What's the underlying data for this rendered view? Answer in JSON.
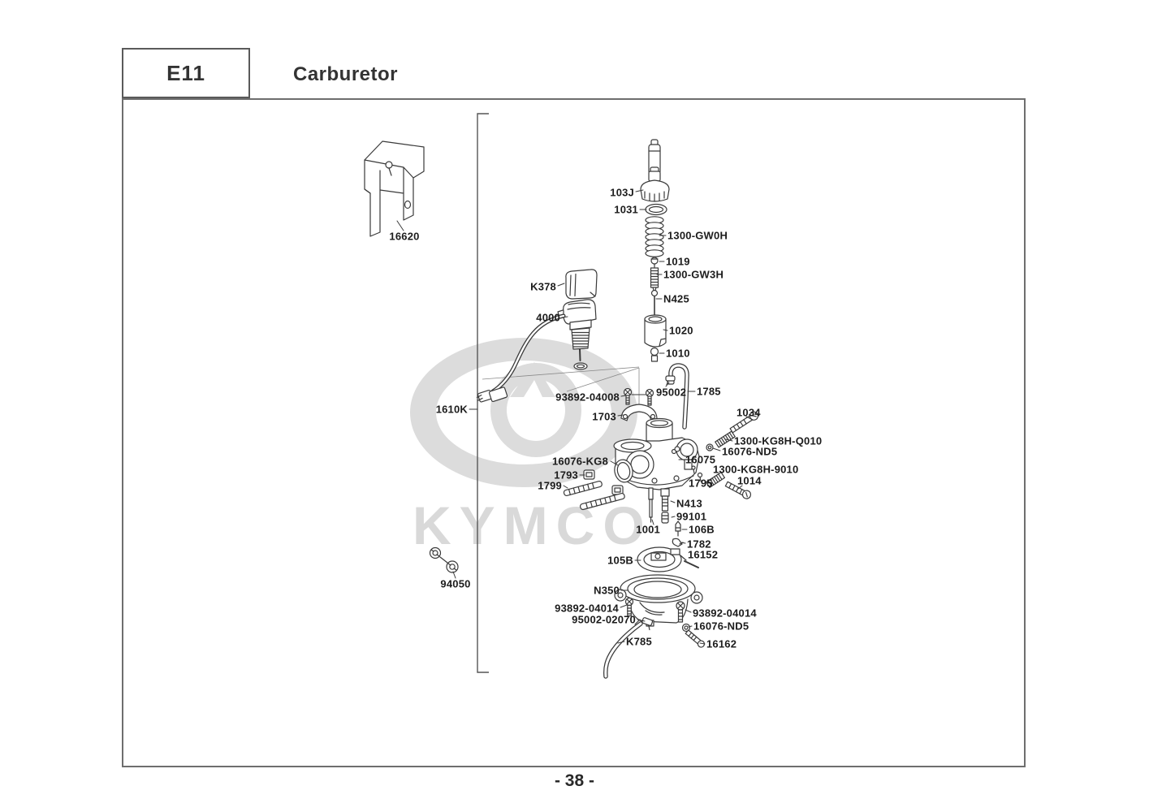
{
  "header": {
    "section_code": "E11",
    "title": "Carburetor"
  },
  "footer": {
    "page_number": "- 38 -"
  },
  "watermark": {
    "brand": "KYMCO"
  },
  "diagram": {
    "labels": [
      {
        "id": "p16620",
        "text": "16620"
      },
      {
        "id": "p103J",
        "text": "103J"
      },
      {
        "id": "p1031",
        "text": "1031"
      },
      {
        "id": "p1300GW0H",
        "text": "1300-GW0H"
      },
      {
        "id": "p1019",
        "text": "1019"
      },
      {
        "id": "p1300GW3H",
        "text": "1300-GW3H"
      },
      {
        "id": "pN425",
        "text": "N425"
      },
      {
        "id": "p1020",
        "text": "1020"
      },
      {
        "id": "p1010",
        "text": "1010"
      },
      {
        "id": "p95002",
        "text": "95002"
      },
      {
        "id": "p1785",
        "text": "1785"
      },
      {
        "id": "p93892_04008",
        "text": "93892-04008"
      },
      {
        "id": "p1703",
        "text": "1703"
      },
      {
        "id": "p1034",
        "text": "1034"
      },
      {
        "id": "pQ010",
        "text": "1300-KG8H-Q010"
      },
      {
        "id": "pND5_top",
        "text": "16076-ND5"
      },
      {
        "id": "p9010",
        "text": "1300-KG8H-9010"
      },
      {
        "id": "p1014",
        "text": "1014"
      },
      {
        "id": "pKG8",
        "text": "16076-KG8"
      },
      {
        "id": "p1793",
        "text": "1793"
      },
      {
        "id": "p1799",
        "text": "1799"
      },
      {
        "id": "p16075",
        "text": "16075"
      },
      {
        "id": "p1795",
        "text": "1795"
      },
      {
        "id": "pN413",
        "text": "N413"
      },
      {
        "id": "p99101",
        "text": "99101"
      },
      {
        "id": "p1001",
        "text": "1001"
      },
      {
        "id": "p106B",
        "text": "106B"
      },
      {
        "id": "p1782",
        "text": "1782"
      },
      {
        "id": "p16152",
        "text": "16152"
      },
      {
        "id": "p105B",
        "text": "105B"
      },
      {
        "id": "pN350",
        "text": "N350"
      },
      {
        "id": "p93892_04014_l",
        "text": "93892-04014"
      },
      {
        "id": "p95002_02070",
        "text": "95002-02070"
      },
      {
        "id": "p93892_04014_r",
        "text": "93892-04014"
      },
      {
        "id": "pND5_bot",
        "text": "16076-ND5"
      },
      {
        "id": "pK785",
        "text": "K785"
      },
      {
        "id": "p16162",
        "text": "16162"
      },
      {
        "id": "p94050",
        "text": "94050"
      },
      {
        "id": "p1610K",
        "text": "1610K"
      },
      {
        "id": "pK378",
        "text": "K378"
      },
      {
        "id": "p4000",
        "text": "4000"
      }
    ]
  }
}
